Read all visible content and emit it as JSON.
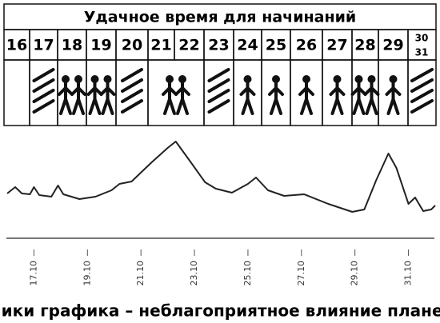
{
  "header": {
    "title": "Удачное время для начинаний",
    "days": [
      "16",
      "17",
      "18",
      "19",
      "20",
      "21",
      "22",
      "23",
      "24",
      "25",
      "26",
      "27",
      "28",
      "29"
    ],
    "last_day": [
      "30",
      "31"
    ]
  },
  "chart_data": {
    "type": "line",
    "x": [
      16,
      16.3,
      16.55,
      16.85,
      17,
      17.2,
      17.65,
      17.9,
      18.1,
      18.7,
      19.3,
      19.9,
      20.2,
      20.65,
      21.4,
      22,
      22.3,
      22.8,
      23.4,
      23.8,
      24.4,
      25,
      25.3,
      25.75,
      26.35,
      27.1,
      28,
      28.9,
      29.35,
      29.8,
      30.25,
      30.55,
      31,
      31.25,
      31.55,
      31.85,
      32
    ],
    "series": [
      {
        "color": "#222222",
        "values": [
          5.8,
          6.6,
          5.8,
          5.7,
          6.6,
          5.6,
          5.4,
          6.8,
          5.7,
          5.1,
          5.4,
          6.2,
          7,
          7.3,
          9.7,
          11.5,
          12.3,
          10,
          7.2,
          6.4,
          5.9,
          7,
          7.8,
          6.2,
          5.5,
          5.7,
          4.5,
          3.5,
          3.8,
          7.5,
          10.8,
          9,
          4.5,
          5.3,
          3.6,
          3.8,
          4.3
        ]
      }
    ],
    "xlim": [
      16,
      32
    ],
    "ylim": [
      0,
      13
    ],
    "xticks": [
      {
        "value": 17,
        "label": "17.10"
      },
      {
        "value": 19,
        "label": "19.10"
      },
      {
        "value": 21,
        "label": "21.10"
      },
      {
        "value": 23,
        "label": "23.10"
      },
      {
        "value": 25,
        "label": "25.10"
      },
      {
        "value": 27,
        "label": "27.10"
      },
      {
        "value": 29,
        "label": "29.10"
      },
      {
        "value": 31,
        "label": "31.10"
      }
    ]
  },
  "caption": "Пики графика – неблагоприятное влияние планет"
}
